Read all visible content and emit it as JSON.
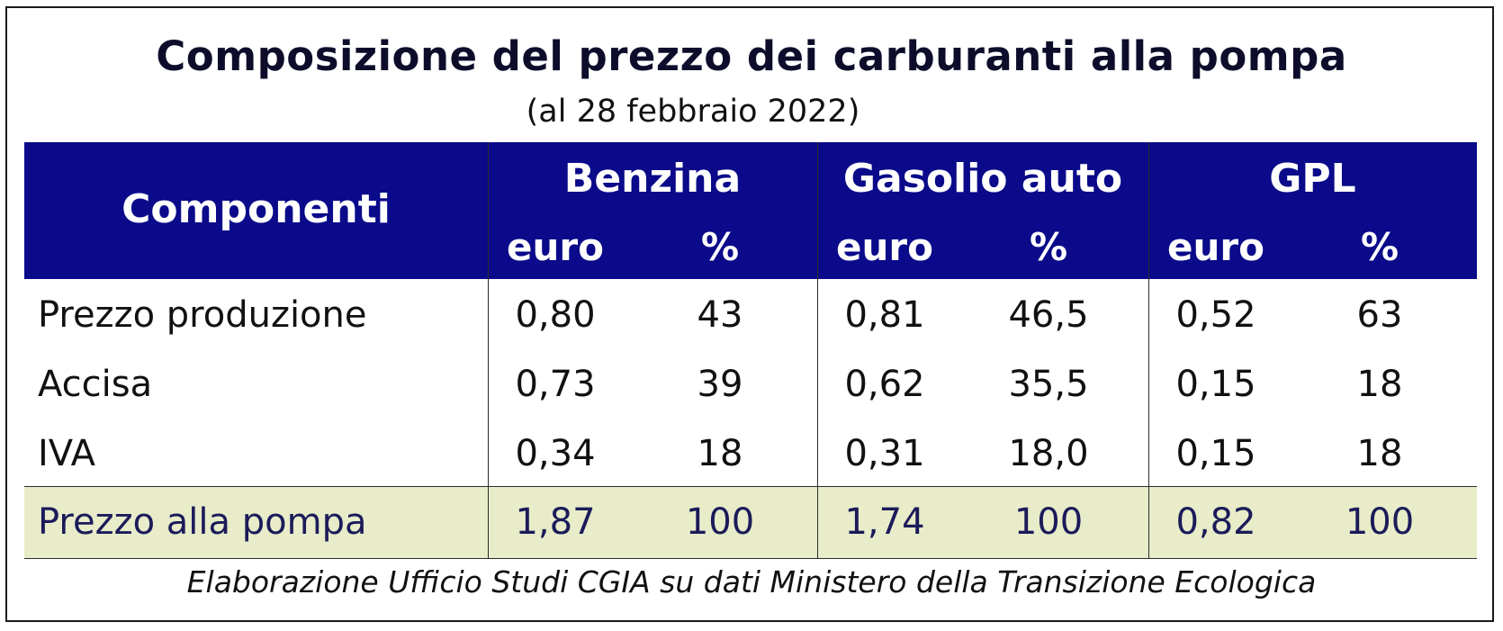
{
  "title": "Composizione del prezzo dei carburanti alla pompa",
  "subtitle": "(al 28 febbraio 2022)",
  "table": {
    "components_header": "Componenti",
    "fuels": [
      {
        "name": "Benzina",
        "col1": "euro",
        "col2": "%"
      },
      {
        "name": "Gasolio auto",
        "col1": "euro",
        "col2": "%"
      },
      {
        "name": "GPL",
        "col1": "euro",
        "col2": "%"
      }
    ],
    "rows": [
      {
        "label": "Prezzo produzione",
        "values": [
          "0,80",
          "43",
          "0,81",
          "46,5",
          "0,52",
          "63"
        ]
      },
      {
        "label": "Accisa",
        "values": [
          "0,73",
          "39",
          "0,62",
          "35,5",
          "0,15",
          "18"
        ]
      },
      {
        "label": "IVA",
        "values": [
          "0,34",
          "18",
          "0,31",
          "18,0",
          "0,15",
          "18"
        ]
      }
    ],
    "total": {
      "label": "Prezzo alla pompa",
      "values": [
        "1,87",
        "100",
        "1,74",
        "100",
        "0,82",
        "100"
      ]
    }
  },
  "footer": "Elaborazione Ufficio Studi CGIA su dati Ministero della Transizione Ecologica",
  "colors": {
    "header_bg": "#0a0a8a",
    "total_row_bg": "#e8ecc9",
    "header_text": "#ffffff"
  }
}
